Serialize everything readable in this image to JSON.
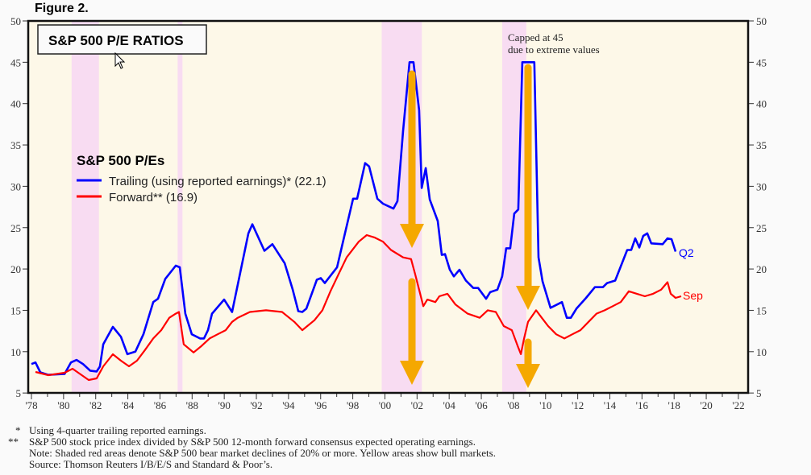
{
  "figure_label": "Figure 2.",
  "chart_data": {
    "type": "line",
    "title": "S&P 500 P/E RATIOS",
    "legend_title": "S&P 500 P/Es",
    "legend_placement": "upper-left",
    "xlabel": "",
    "ylabel": "",
    "xlim": [
      1978,
      2022
    ],
    "ylim": [
      5,
      50
    ],
    "y_ticks": [
      5,
      10,
      15,
      20,
      25,
      30,
      35,
      40,
      45,
      50
    ],
    "x_tick_labels": [
      "78",
      "80",
      "82",
      "84",
      "86",
      "88",
      "90",
      "92",
      "94",
      "96",
      "98",
      "00",
      "02",
      "04",
      "06",
      "08",
      "10",
      "12",
      "14",
      "16",
      "18",
      "20",
      "22"
    ],
    "annotation": [
      "Capped at 45",
      "due to extreme values"
    ],
    "bear_markets": [
      [
        1980.5,
        1982.2
      ],
      [
        1987.1,
        1987.4
      ],
      [
        1999.8,
        2002.3
      ],
      [
        2007.3,
        2008.8
      ]
    ],
    "series": [
      {
        "name": "Trailing (using reported earnings)* (22.1)",
        "color": "#0000ff",
        "end_label": "Q2",
        "points": [
          [
            1978.0,
            8.5
          ],
          [
            1978.25,
            8.7
          ],
          [
            1978.55,
            7.5
          ],
          [
            1979.05,
            7.2
          ],
          [
            1980.06,
            7.3
          ],
          [
            1980.46,
            8.7
          ],
          [
            1980.81,
            9.0
          ],
          [
            1981.21,
            8.5
          ],
          [
            1981.66,
            7.7
          ],
          [
            1982.06,
            7.6
          ],
          [
            1982.26,
            8.2
          ],
          [
            1982.47,
            10.9
          ],
          [
            1983.07,
            13.0
          ],
          [
            1983.57,
            11.8
          ],
          [
            1983.97,
            9.7
          ],
          [
            1984.47,
            10.0
          ],
          [
            1984.97,
            12.1
          ],
          [
            1985.58,
            16.0
          ],
          [
            1985.88,
            16.4
          ],
          [
            1986.33,
            18.8
          ],
          [
            1986.98,
            20.4
          ],
          [
            1987.23,
            20.2
          ],
          [
            1987.58,
            14.6
          ],
          [
            1987.98,
            12.1
          ],
          [
            1988.49,
            11.6
          ],
          [
            1988.74,
            11.6
          ],
          [
            1988.99,
            12.6
          ],
          [
            1989.24,
            14.6
          ],
          [
            1989.99,
            16.3
          ],
          [
            1990.49,
            14.8
          ],
          [
            1991.5,
            24.3
          ],
          [
            1991.75,
            25.4
          ],
          [
            1992.5,
            22.2
          ],
          [
            1993.0,
            23.0
          ],
          [
            1993.76,
            20.7
          ],
          [
            1994.26,
            17.5
          ],
          [
            1994.61,
            14.9
          ],
          [
            1994.86,
            14.8
          ],
          [
            1995.11,
            15.2
          ],
          [
            1995.76,
            18.7
          ],
          [
            1996.01,
            18.9
          ],
          [
            1996.26,
            18.3
          ],
          [
            1997.02,
            20.2
          ],
          [
            1997.37,
            23.1
          ],
          [
            1998.02,
            28.5
          ],
          [
            1998.27,
            28.5
          ],
          [
            1998.77,
            32.8
          ],
          [
            1999.02,
            32.4
          ],
          [
            1999.53,
            28.5
          ],
          [
            1999.88,
            27.9
          ],
          [
            2000.53,
            27.3
          ],
          [
            2000.78,
            28.2
          ],
          [
            2001.13,
            36.7
          ],
          [
            2001.53,
            45
          ],
          [
            2001.78,
            45
          ],
          [
            2002.13,
            39.2
          ],
          [
            2002.29,
            29.8
          ],
          [
            2002.54,
            32.2
          ],
          [
            2002.79,
            28.4
          ],
          [
            2003.29,
            25.8
          ],
          [
            2003.54,
            21.7
          ],
          [
            2003.74,
            21.8
          ],
          [
            2004.04,
            19.9
          ],
          [
            2004.29,
            19.1
          ],
          [
            2004.64,
            19.9
          ],
          [
            2005.04,
            18.6
          ],
          [
            2005.5,
            17.7
          ],
          [
            2005.8,
            17.7
          ],
          [
            2006.3,
            16.4
          ],
          [
            2006.55,
            17.2
          ],
          [
            2007.0,
            17.5
          ],
          [
            2007.3,
            19.1
          ],
          [
            2007.55,
            22.5
          ],
          [
            2007.8,
            22.5
          ],
          [
            2008.05,
            26.7
          ],
          [
            2008.3,
            27.2
          ],
          [
            2008.55,
            45
          ],
          [
            2009.3,
            45
          ],
          [
            2009.56,
            21.4
          ],
          [
            2009.81,
            18.5
          ],
          [
            2010.31,
            15.3
          ],
          [
            2011.02,
            16.0
          ],
          [
            2011.32,
            14.1
          ],
          [
            2011.57,
            14.1
          ],
          [
            2011.92,
            15.2
          ],
          [
            2012.52,
            16.5
          ],
          [
            2013.07,
            17.8
          ],
          [
            2013.57,
            17.8
          ],
          [
            2013.83,
            18.3
          ],
          [
            2014.33,
            18.6
          ],
          [
            2015.08,
            22.3
          ],
          [
            2015.33,
            22.3
          ],
          [
            2015.58,
            23.7
          ],
          [
            2015.83,
            22.6
          ],
          [
            2016.08,
            24.0
          ],
          [
            2016.33,
            24.3
          ],
          [
            2016.58,
            23.1
          ],
          [
            2017.29,
            23.0
          ],
          [
            2017.59,
            23.7
          ],
          [
            2017.84,
            23.6
          ],
          [
            2018.09,
            22.1
          ]
        ]
      },
      {
        "name": "Forward** (16.9)",
        "color": "#ff0000",
        "end_label": "Sep",
        "points": [
          [
            1978.25,
            7.55
          ],
          [
            1979.05,
            7.16
          ],
          [
            1980.06,
            7.45
          ],
          [
            1980.56,
            7.94
          ],
          [
            1981.06,
            7.25
          ],
          [
            1981.56,
            6.57
          ],
          [
            1982.06,
            6.77
          ],
          [
            1982.47,
            8.23
          ],
          [
            1983.07,
            9.69
          ],
          [
            1983.57,
            8.91
          ],
          [
            1984.07,
            8.23
          ],
          [
            1984.57,
            8.91
          ],
          [
            1985.07,
            10.2
          ],
          [
            1985.58,
            11.6
          ],
          [
            1986.08,
            12.6
          ],
          [
            1986.58,
            14.1
          ],
          [
            1986.98,
            14.6
          ],
          [
            1987.18,
            14.8
          ],
          [
            1987.48,
            10.9
          ],
          [
            1988.09,
            9.9
          ],
          [
            1988.59,
            10.7
          ],
          [
            1989.09,
            11.6
          ],
          [
            1989.59,
            12.1
          ],
          [
            1990.09,
            12.6
          ],
          [
            1990.49,
            13.6
          ],
          [
            1990.84,
            14.1
          ],
          [
            1991.6,
            14.8
          ],
          [
            1992.6,
            15.0
          ],
          [
            1993.6,
            14.8
          ],
          [
            1994.36,
            13.6
          ],
          [
            1994.86,
            12.6
          ],
          [
            1995.61,
            13.8
          ],
          [
            1996.11,
            15.0
          ],
          [
            1996.61,
            17.3
          ],
          [
            1997.12,
            19.4
          ],
          [
            1997.62,
            21.4
          ],
          [
            1998.37,
            23.3
          ],
          [
            1998.87,
            24.1
          ],
          [
            1999.37,
            23.8
          ],
          [
            1999.88,
            23.3
          ],
          [
            2000.38,
            22.3
          ],
          [
            2001.13,
            21.4
          ],
          [
            2001.63,
            21.2
          ],
          [
            2001.88,
            19.4
          ],
          [
            2002.13,
            17.5
          ],
          [
            2002.39,
            15.5
          ],
          [
            2002.64,
            16.3
          ],
          [
            2003.14,
            16.0
          ],
          [
            2003.39,
            16.7
          ],
          [
            2003.89,
            17.0
          ],
          [
            2004.39,
            15.7
          ],
          [
            2005.15,
            14.6
          ],
          [
            2005.9,
            14.1
          ],
          [
            2006.4,
            15.0
          ],
          [
            2006.9,
            14.8
          ],
          [
            2007.4,
            13.1
          ],
          [
            2007.9,
            12.6
          ],
          [
            2008.26,
            10.7
          ],
          [
            2008.46,
            9.7
          ],
          [
            2008.66,
            11.6
          ],
          [
            2008.91,
            13.6
          ],
          [
            2009.41,
            15.0
          ],
          [
            2009.76,
            14.1
          ],
          [
            2010.16,
            13.1
          ],
          [
            2010.66,
            12.1
          ],
          [
            2011.17,
            11.6
          ],
          [
            2011.67,
            12.1
          ],
          [
            2012.17,
            12.6
          ],
          [
            2012.67,
            13.6
          ],
          [
            2013.17,
            14.6
          ],
          [
            2013.68,
            15.0
          ],
          [
            2014.18,
            15.5
          ],
          [
            2014.68,
            16.0
          ],
          [
            2015.18,
            17.3
          ],
          [
            2015.68,
            17.0
          ],
          [
            2016.18,
            16.7
          ],
          [
            2016.69,
            17.0
          ],
          [
            2017.19,
            17.5
          ],
          [
            2017.59,
            18.4
          ],
          [
            2017.79,
            17.0
          ],
          [
            2018.09,
            16.5
          ],
          [
            2018.44,
            16.7
          ]
        ]
      }
    ]
  },
  "footnotes": [
    {
      "marker": "*",
      "text": "Using 4-quarter trailing reported earnings."
    },
    {
      "marker": "**",
      "text": "S&P 500 stock price index divided by S&P 500 12-month forward consensus expected operating earnings."
    },
    {
      "marker": "",
      "text": "Note: Shaded red areas denote S&P 500 bear market declines of 20% or more. Yellow areas show bull markets."
    },
    {
      "marker": "",
      "text": "Source: Thomson Reuters I/B/E/S and Standard & Poor’s."
    }
  ],
  "colors": {
    "plot_bg": "#fdf8e8",
    "bear": "#f8dcf2",
    "arrow": "#f5a800"
  }
}
